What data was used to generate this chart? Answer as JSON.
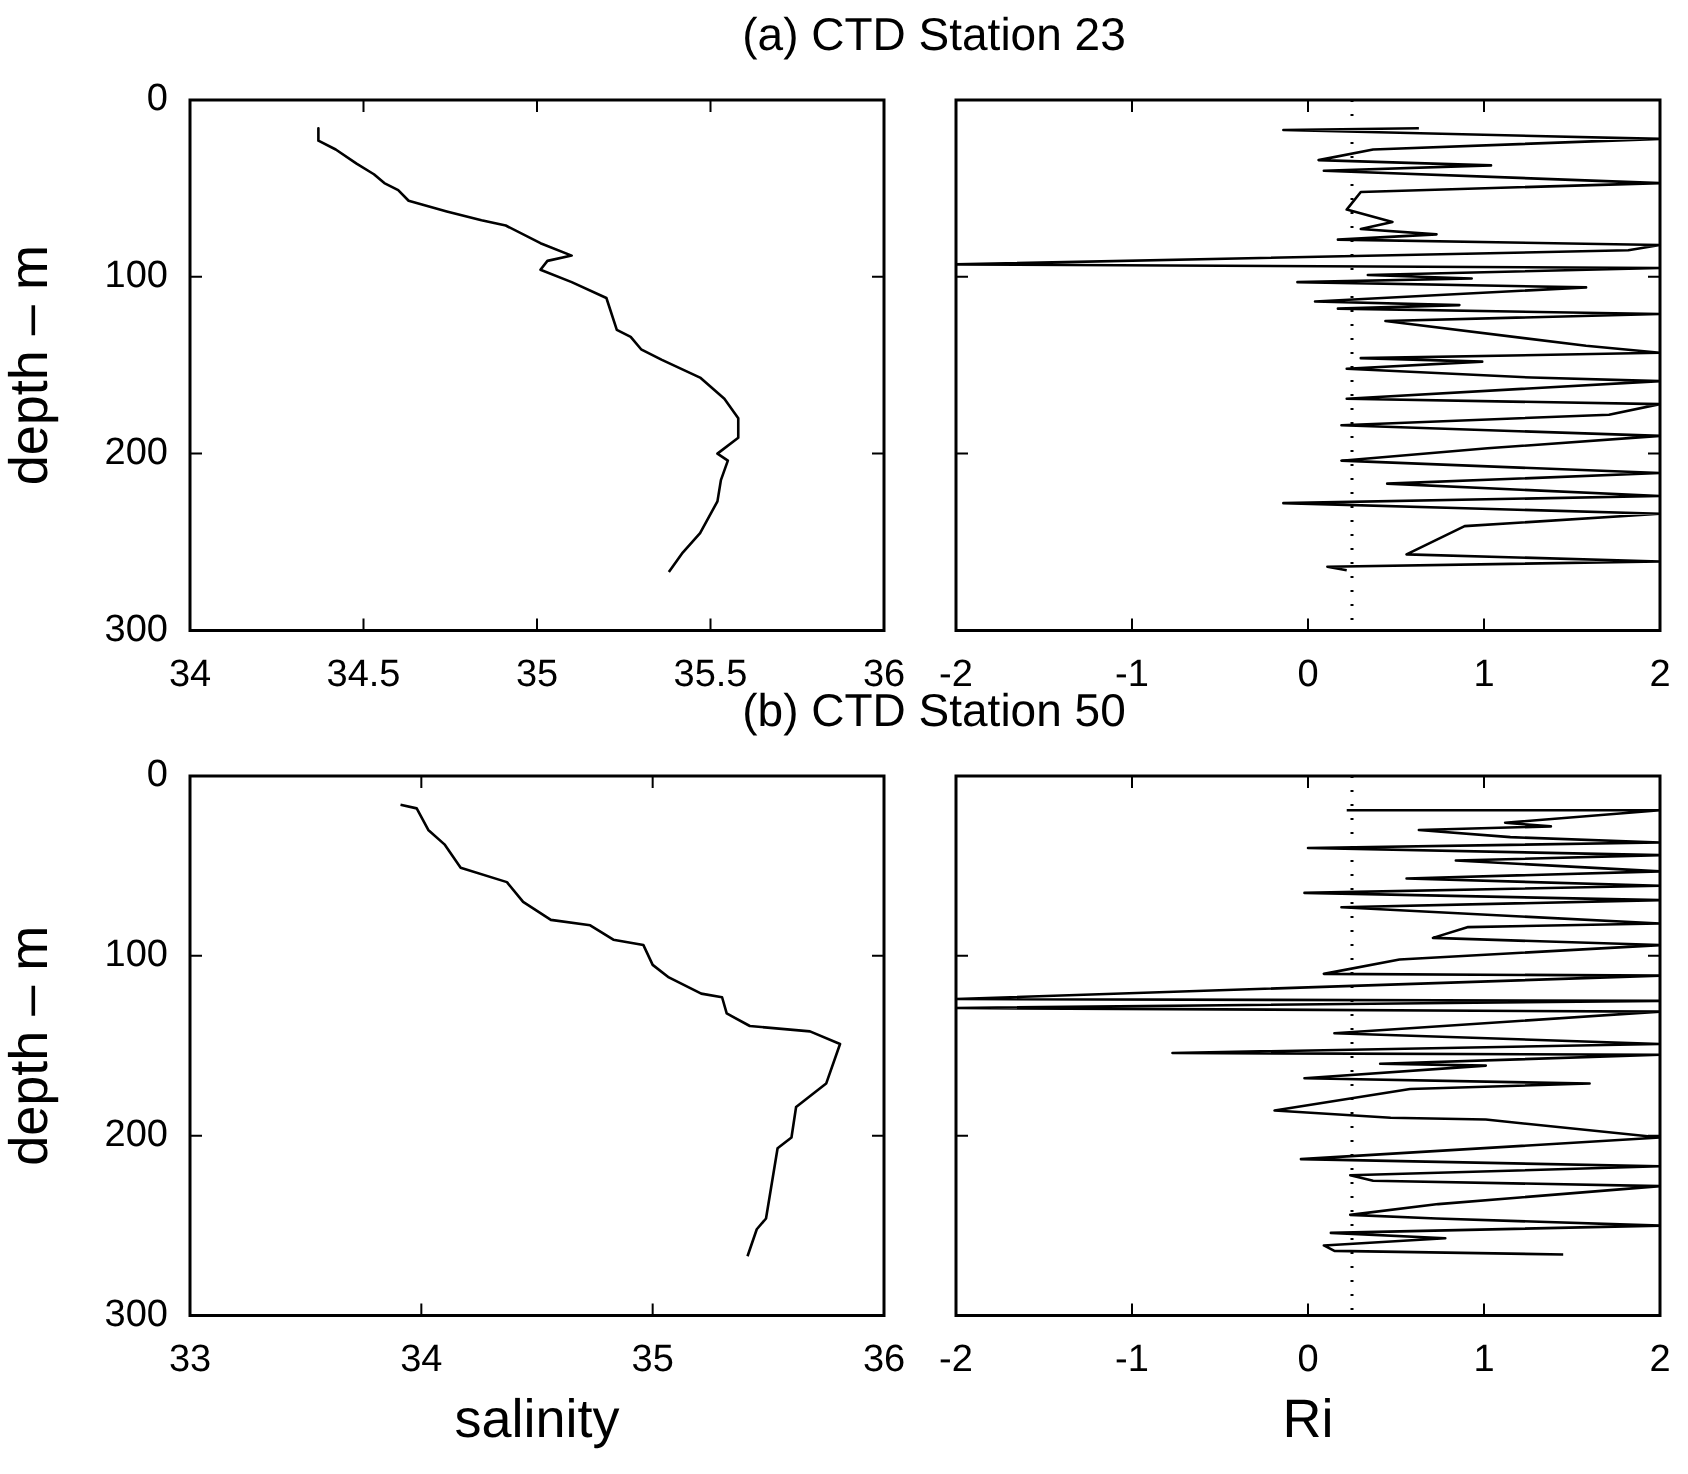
{
  "chart_data": [
    {
      "type": "line",
      "title": "(a) CTD Station 23",
      "ylabel": "depth – m",
      "xlim": [
        34,
        36
      ],
      "xticks": [
        34,
        34.5,
        35,
        35.5,
        36
      ],
      "ylim": [
        300,
        0
      ],
      "yticks": [
        0,
        100,
        200,
        300
      ],
      "series": [
        {
          "color": "#000000",
          "x": [
            34.37,
            34.37,
            34.42,
            34.48,
            34.53,
            34.56,
            34.6,
            34.63,
            34.74,
            34.84,
            34.91,
            35.01,
            35.1,
            35.03,
            35.01,
            35.1,
            35.2,
            35.23,
            35.27,
            35.3,
            35.36,
            35.47,
            35.54,
            35.58,
            35.58,
            35.52,
            35.55,
            35.53,
            35.52,
            35.47,
            35.42,
            35.38
          ],
          "values": [
            16,
            23,
            28,
            36,
            42,
            47,
            51,
            57,
            63,
            68,
            71,
            81,
            88,
            91,
            96,
            103,
            112,
            130,
            134,
            141,
            147,
            157,
            169,
            180,
            191,
            200,
            204,
            215,
            227,
            245,
            256,
            267
          ]
        }
      ]
    },
    {
      "type": "line",
      "xlim": [
        -2,
        2
      ],
      "xticks": [
        -2,
        -1,
        0,
        1,
        2
      ],
      "ylim": [
        300,
        0
      ],
      "yticks": [
        0,
        100,
        200,
        300
      ],
      "tick_labels": "x",
      "ref_lines": [
        {
          "axis": "x",
          "value": 0.25,
          "color": "#000000",
          "line_style": "dotted"
        }
      ],
      "series": [
        {
          "color": "#000000",
          "x": [
            0.63,
            -0.14,
            2,
            0.37,
            0.06,
            1.04,
            0.09,
            2,
            0.3,
            0.22,
            0.48,
            0.3,
            0.73,
            0.17,
            2,
            1.82,
            -2,
            2,
            0.34,
            0.93,
            -0.06,
            1.58,
            0.04,
            0.86,
            0.17,
            2,
            0.44,
            1.58,
            2,
            0.3,
            0.99,
            0.22,
            1.27,
            2,
            0.22,
            2,
            1.71,
            0.19,
            2,
            1.02,
            0.19,
            2,
            0.45,
            2,
            -0.14,
            2,
            0.89,
            0.56,
            2,
            0.11,
            0.22
          ],
          "values": [
            16,
            17,
            22,
            28,
            34,
            37,
            40,
            47,
            52,
            62,
            69,
            73,
            76,
            79,
            82,
            85,
            93,
            95,
            99,
            101,
            103,
            106,
            114,
            116,
            118,
            121,
            125,
            139,
            143,
            146,
            148,
            152,
            157,
            159,
            169,
            172,
            178,
            184,
            190,
            197,
            204,
            211,
            217,
            224,
            228,
            234,
            241,
            257,
            261,
            264,
            266
          ]
        }
      ]
    },
    {
      "type": "line",
      "title": "(b) CTD Station 50",
      "xlabel": "salinity",
      "ylabel": "depth – m",
      "xlim": [
        33,
        36
      ],
      "xticks": [
        33,
        34,
        35,
        36
      ],
      "ylim": [
        300,
        0
      ],
      "yticks": [
        0,
        100,
        200,
        300
      ],
      "series": [
        {
          "color": "#000000",
          "x": [
            33.91,
            33.98,
            34.03,
            34.1,
            34.17,
            34.37,
            34.44,
            34.56,
            34.73,
            34.83,
            34.96,
            35,
            35.07,
            35.21,
            35.3,
            35.32,
            35.42,
            35.68,
            35.81,
            35.75,
            35.62,
            35.6,
            35.54,
            35.49,
            35.45,
            35.41
          ],
          "values": [
            16,
            18,
            30,
            38,
            51,
            59,
            70,
            80,
            83,
            91,
            94,
            105,
            112,
            121,
            123,
            132,
            139,
            142,
            149,
            171,
            184,
            201,
            207,
            246,
            252,
            267
          ]
        }
      ]
    },
    {
      "type": "line",
      "xlabel": "Ri",
      "xlim": [
        -2,
        2
      ],
      "xticks": [
        -2,
        -1,
        0,
        1,
        2
      ],
      "ylim": [
        300,
        0
      ],
      "yticks": [
        0,
        100,
        200,
        300
      ],
      "tick_labels": "x",
      "ref_lines": [
        {
          "axis": "x",
          "value": 0.25,
          "color": "#000000",
          "line_style": "dotted"
        }
      ],
      "series": [
        {
          "color": "#000000",
          "x": [
            0.22,
            2,
            1.12,
            1.38,
            0.63,
            1.15,
            2,
            0,
            2,
            0.84,
            2,
            0.56,
            2,
            -0.02,
            2,
            0.19,
            2,
            0.91,
            0.71,
            2,
            0.52,
            0.09,
            2,
            -2,
            2,
            -2,
            2,
            0.15,
            2,
            -0.77,
            2,
            0.41,
            1.01,
            -0.02,
            1.6,
            0.58,
            -0.19,
            0.47,
            1.01,
            2,
            -0.04,
            2,
            0.24,
            0.37,
            2,
            0.74,
            0.24,
            0.73,
            2,
            0.13,
            0.78,
            0.09,
            0.15,
            1.45
          ],
          "values": [
            19,
            19,
            26,
            28,
            30,
            34,
            37,
            40,
            44,
            47,
            53,
            57,
            61,
            65,
            69,
            73,
            82,
            84,
            90,
            94,
            102,
            110,
            111,
            124,
            125,
            129,
            131,
            143,
            149,
            154,
            155,
            160,
            161,
            168,
            171,
            174,
            186,
            190,
            191,
            201,
            213,
            217,
            222,
            225,
            228,
            238,
            244,
            246,
            250,
            254,
            257,
            261,
            264,
            266
          ]
        }
      ]
    }
  ]
}
